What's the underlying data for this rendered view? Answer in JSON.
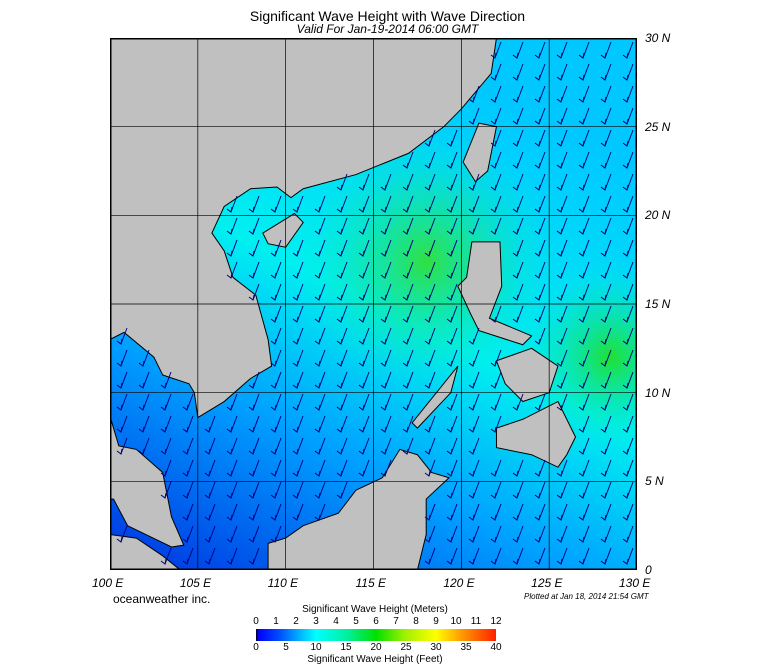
{
  "title": "Significant Wave Height with Wave Direction",
  "subtitle": "Valid For Jan-19-2014 06:00 GMT",
  "lon_labels": [
    "100 E",
    "105 E",
    "110 E",
    "115 E",
    "120 E",
    "125 E",
    "130 E"
  ],
  "lat_labels": [
    "30 N",
    "25 N",
    "20 N",
    "15 N",
    "10 N",
    "5 N",
    "0"
  ],
  "brand": "oceanweather inc.",
  "plotted": "Plotted at Jan 18, 2014 21:54 GMT",
  "colorbar": {
    "title_meters": "Significant Wave Height (Meters)",
    "title_feet": "Significant Wave Height (Feet)",
    "meters_ticks": [
      "0",
      "1",
      "2",
      "3",
      "4",
      "5",
      "6",
      "7",
      "8",
      "9",
      "10",
      "11",
      "12"
    ],
    "feet_ticks": [
      "0",
      "5",
      "10",
      "15",
      "20",
      "25",
      "30",
      "35",
      "40"
    ],
    "colors": [
      "#000000",
      "#0000ff",
      "#00ffff",
      "#00e000",
      "#ffff00",
      "#ff2000"
    ]
  },
  "map": {
    "lon_range": [
      100,
      130
    ],
    "lat_range": [
      0,
      30
    ],
    "grid_step_deg": 5,
    "land_color": "#c0c0c0",
    "arrow_color": "#000080",
    "wave_direction": "toward southwest"
  }
}
